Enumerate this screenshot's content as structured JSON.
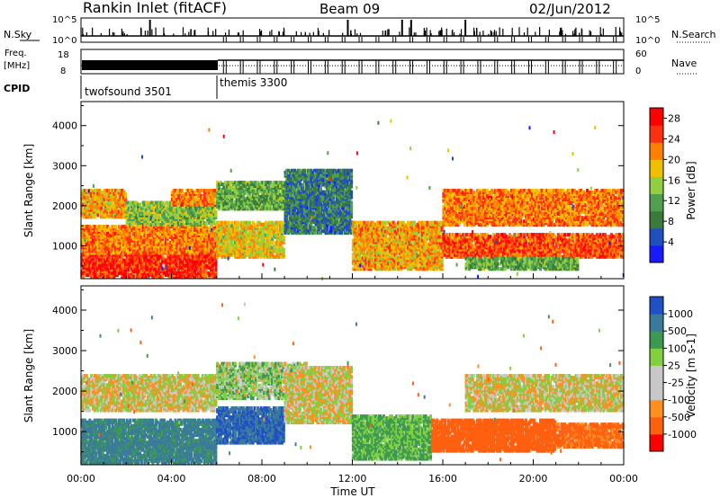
{
  "header": {
    "title": "Rankin Inlet (fitACF)",
    "beam": "Beam 09",
    "date": "02/Jun/2012"
  },
  "top_panels": {
    "nsky_label": "N.Sky",
    "nsky_ticks": [
      "10^5",
      "10^0"
    ],
    "nsearch_label": "N.Search",
    "nsearch_ticks": [
      "10^5",
      "10^0"
    ],
    "freq_label": "Freq.",
    "freq_unit": "[MHz]",
    "freq_ticks": [
      "18",
      "8"
    ],
    "nave_label": "Nave",
    "nave_ticks": [
      "60",
      "0"
    ],
    "cpid_label": "CPID",
    "cpid_modes": [
      {
        "name": "twofsound 3501",
        "start_hour": 0,
        "end_hour": 6
      },
      {
        "name": "themis 3300",
        "start_hour": 6,
        "end_hour": 24
      }
    ]
  },
  "colors": {
    "power_scale": [
      "#1a1aff",
      "#2050c0",
      "#3a7a3a",
      "#50a050",
      "#90d040",
      "#f0c000",
      "#ff8000",
      "#ff3010",
      "#ff0000"
    ],
    "velocity_scale": [
      "#2050c8",
      "#3a7a9a",
      "#3c9a50",
      "#80d040",
      "#c8c8c8",
      "#c8c8c8",
      "#ff9020",
      "#ff6010",
      "#ff0000"
    ]
  },
  "chart_data": [
    {
      "type": "heatmap",
      "title": "",
      "quantity": "Power",
      "xlabel": "",
      "ylabel": "Slant Range [km]",
      "x_unit": "hours UT",
      "xlim": [
        0,
        24
      ],
      "ylim": [
        180,
        4600
      ],
      "yticks": [
        "1000",
        "2000",
        "3000",
        "4000"
      ],
      "ytick_values": [
        1000,
        2000,
        3000,
        4000
      ],
      "colorbar_label": "Power [dB]",
      "colorbar_ticks": [
        "4",
        "8",
        "12",
        "16",
        "20",
        "24",
        "28"
      ],
      "colorbar_values": [
        4,
        8,
        12,
        16,
        20,
        24,
        28
      ],
      "colorbar_range": [
        0,
        30
      ],
      "regions": [
        {
          "t0": 0.0,
          "t1": 6.0,
          "r0": 200,
          "r1": 800,
          "value": 26
        },
        {
          "t0": 0.0,
          "t1": 6.0,
          "r0": 800,
          "r1": 1500,
          "value": 22
        },
        {
          "t0": 0.0,
          "t1": 2.0,
          "r0": 1700,
          "r1": 2400,
          "value": 20
        },
        {
          "t0": 2.0,
          "t1": 6.0,
          "r0": 1500,
          "r1": 2100,
          "value": 14
        },
        {
          "t0": 4.0,
          "t1": 6.0,
          "r0": 2000,
          "r1": 2400,
          "value": 22
        },
        {
          "t0": 6.0,
          "t1": 9.0,
          "r0": 700,
          "r1": 1600,
          "value": 18
        },
        {
          "t0": 6.0,
          "t1": 9.0,
          "r0": 1900,
          "r1": 2600,
          "value": 12
        },
        {
          "t0": 9.0,
          "t1": 12.0,
          "r0": 1300,
          "r1": 2900,
          "value": 8
        },
        {
          "t0": 12.0,
          "t1": 16.0,
          "r0": 400,
          "r1": 1600,
          "value": 20
        },
        {
          "t0": 16.0,
          "t1": 24.0,
          "r0": 700,
          "r1": 1300,
          "value": 24
        },
        {
          "t0": 16.0,
          "t1": 24.0,
          "r0": 1500,
          "r1": 2400,
          "value": 22
        },
        {
          "t0": 17.0,
          "t1": 22.0,
          "r0": 400,
          "r1": 700,
          "value": 12
        }
      ]
    },
    {
      "type": "heatmap",
      "title": "",
      "quantity": "Velocity",
      "xlabel": "Time UT",
      "ylabel": "Slant Range [km]",
      "x_unit": "hours UT",
      "xlim": [
        0,
        24
      ],
      "ylim": [
        180,
        4600
      ],
      "xticks": [
        "00:00",
        "04:00",
        "08:00",
        "12:00",
        "16:00",
        "20:00",
        "00:00"
      ],
      "xtick_hours": [
        0,
        4,
        8,
        12,
        16,
        20,
        24
      ],
      "yticks": [
        "1000",
        "2000",
        "3000",
        "4000"
      ],
      "ytick_values": [
        1000,
        2000,
        3000,
        4000
      ],
      "colorbar_label": "Velocity [m s-1]",
      "colorbar_ticks": [
        "1000",
        "500",
        "100",
        "25",
        "-25",
        "-100",
        "-500",
        "-1000"
      ],
      "colorbar_values": [
        1000,
        500,
        100,
        25,
        -25,
        -100,
        -500,
        -1000
      ],
      "regions": [
        {
          "t0": 0.0,
          "t1": 6.0,
          "r0": 200,
          "r1": 1300,
          "value": 300
        },
        {
          "t0": 0.0,
          "t1": 6.0,
          "r0": 1500,
          "r1": 2400,
          "value": 0
        },
        {
          "t0": 6.0,
          "t1": 9.0,
          "r0": 700,
          "r1": 1600,
          "value": 500
        },
        {
          "t0": 6.0,
          "t1": 10.0,
          "r0": 1800,
          "r1": 2700,
          "value": 60
        },
        {
          "t0": 9.0,
          "t1": 12.0,
          "r0": 1200,
          "r1": 2600,
          "value": 0
        },
        {
          "t0": 12.0,
          "t1": 15.5,
          "r0": 300,
          "r1": 1400,
          "value": 120
        },
        {
          "t0": 15.5,
          "t1": 21.0,
          "r0": 500,
          "r1": 1300,
          "value": -250
        },
        {
          "t0": 17.0,
          "t1": 24.0,
          "r0": 1500,
          "r1": 2400,
          "value": 0
        },
        {
          "t0": 21.0,
          "t1": 24.0,
          "r0": 600,
          "r1": 1200,
          "value": -150
        }
      ]
    }
  ],
  "layout_note_free": true
}
